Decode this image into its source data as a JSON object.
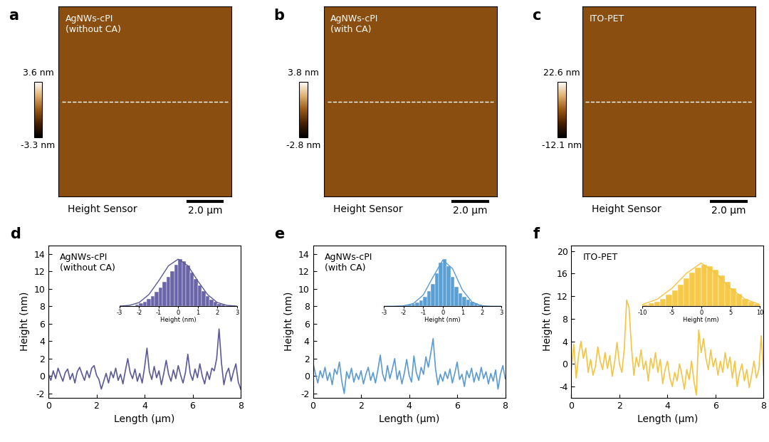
{
  "chart_data": [
    {
      "type": "image",
      "panel": "a",
      "title": "AgNWs-cPI\n(without CA)",
      "subtitle": "Height Sensor",
      "scale_bar": "2.0 μm",
      "colorbar_lim": [
        -3.3,
        3.6
      ],
      "colorbar_ticks": [
        {
          "value": 3.6,
          "label": "3.6 nm"
        },
        {
          "value": -3.3,
          "label": "-3.3 nm"
        }
      ]
    },
    {
      "type": "image",
      "panel": "b",
      "title": "AgNWs-cPI\n(with CA)",
      "subtitle": "Height Sensor",
      "scale_bar": "2.0 μm",
      "colorbar_lim": [
        -2.8,
        3.8
      ],
      "colorbar_ticks": [
        {
          "value": 3.8,
          "label": "3.8 nm"
        },
        {
          "value": -2.8,
          "label": "-2.8 nm"
        }
      ]
    },
    {
      "type": "image",
      "panel": "c",
      "title": "ITO-PET",
      "subtitle": "Height Sensor",
      "scale_bar": "2.0 μm",
      "colorbar_lim": [
        -12.1,
        22.6
      ],
      "colorbar_ticks": [
        {
          "value": 22.6,
          "label": "22.6 nm"
        },
        {
          "value": -12.1,
          "label": "-12.1 nm"
        }
      ]
    },
    {
      "type": "line",
      "panel": "d",
      "title": "AgNWs-cPI\n(without CA)",
      "x_label": "Length (μm)",
      "y_label": "Height (nm)",
      "color": "#5b5a97",
      "x": [
        0,
        0.1,
        0.2,
        0.3,
        0.4,
        0.5,
        0.6,
        0.7,
        0.8,
        0.9,
        1.0,
        1.1,
        1.2,
        1.3,
        1.4,
        1.5,
        1.6,
        1.7,
        1.8,
        1.9,
        2.0,
        2.1,
        2.2,
        2.3,
        2.4,
        2.5,
        2.6,
        2.7,
        2.8,
        2.9,
        3.0,
        3.1,
        3.2,
        3.3,
        3.4,
        3.5,
        3.6,
        3.7,
        3.8,
        3.9,
        4.0,
        4.1,
        4.2,
        4.3,
        4.4,
        4.5,
        4.6,
        4.7,
        4.8,
        4.9,
        5.0,
        5.1,
        5.2,
        5.3,
        5.4,
        5.5,
        5.6,
        5.7,
        5.8,
        5.9,
        6.0,
        6.1,
        6.2,
        6.3,
        6.4,
        6.5,
        6.6,
        6.7,
        6.8,
        6.9,
        7.0,
        7.1,
        7.2,
        7.3,
        7.4,
        7.5,
        7.6,
        7.7,
        7.8,
        7.9,
        8.0
      ],
      "values": [
        0.2,
        -0.5,
        0.6,
        -0.3,
        0.9,
        0.1,
        -0.6,
        0.4,
        0.8,
        -0.4,
        0.3,
        -0.8,
        0.5,
        1.0,
        0.2,
        -0.5,
        0.6,
        -0.2,
        0.9,
        1.2,
        0.1,
        -0.4,
        -1.5,
        -0.6,
        0.3,
        -0.8,
        0.5,
        -0.2,
        0.9,
        -0.5,
        0.2,
        -0.9,
        0.6,
        2.0,
        0.4,
        -0.3,
        0.8,
        -0.6,
        0.3,
        -0.8,
        1.0,
        3.2,
        0.5,
        -0.4,
        1.1,
        -0.2,
        0.6,
        -1.0,
        0.3,
        1.8,
        0.2,
        -0.6,
        0.7,
        -0.3,
        1.2,
        0.1,
        -0.8,
        0.4,
        2.5,
        0.3,
        -0.5,
        0.8,
        -0.2,
        1.4,
        0.0,
        -0.9,
        0.5,
        -0.4,
        0.9,
        0.6,
        2.0,
        5.4,
        1.5,
        -1.0,
        0.3,
        0.9,
        -0.6,
        0.5,
        1.4,
        -0.7,
        -1.5
      ],
      "xlim": [
        0,
        8
      ],
      "xticks": [
        0,
        2,
        4,
        6,
        8
      ],
      "ylim": [
        -2.5,
        15
      ],
      "yticks": [
        -2,
        0,
        2,
        4,
        6,
        8,
        10,
        12,
        14
      ],
      "inset": {
        "type": "histogram",
        "x_label": "Height (nm)",
        "color": "#6a64a8",
        "bins": [
          -2.2,
          -2.0,
          -1.8,
          -1.6,
          -1.4,
          -1.2,
          -1.0,
          -0.8,
          -0.6,
          -0.4,
          -0.2,
          0,
          0.2,
          0.4,
          0.6,
          0.8,
          1.0,
          1.2,
          1.4,
          1.6,
          1.8,
          2.0,
          2.2,
          2.4
        ],
        "counts": [
          4,
          6,
          10,
          15,
          22,
          30,
          40,
          52,
          63,
          75,
          88,
          100,
          95,
          86,
          72,
          58,
          45,
          33,
          22,
          14,
          9,
          5,
          3
        ],
        "fit": {
          "type": "line",
          "color": "#5b5a97",
          "x": [
            -3,
            -2.5,
            -2,
            -1.5,
            -1,
            -0.5,
            0,
            0.5,
            1,
            1.5,
            2,
            2.5,
            3
          ],
          "values": [
            0.4,
            2,
            8,
            25,
            54,
            86,
            100,
            86,
            54,
            25,
            8,
            2,
            0.4
          ]
        },
        "xlim": [
          -3,
          3
        ],
        "xticks": [
          -3,
          -2,
          -1,
          0,
          1,
          2,
          3
        ],
        "ylim": [
          0,
          110
        ],
        "tick_labels": "x"
      }
    },
    {
      "type": "line",
      "panel": "e",
      "title": "AgNWs-cPI\n(with CA)",
      "x_label": "Length (μm)",
      "y_label": "Height (nm)",
      "color": "#5b9bd0",
      "x": [
        0,
        0.1,
        0.2,
        0.3,
        0.4,
        0.5,
        0.6,
        0.7,
        0.8,
        0.9,
        1.0,
        1.1,
        1.2,
        1.3,
        1.4,
        1.5,
        1.6,
        1.7,
        1.8,
        1.9,
        2.0,
        2.1,
        2.2,
        2.3,
        2.4,
        2.5,
        2.6,
        2.7,
        2.8,
        2.9,
        3.0,
        3.1,
        3.2,
        3.3,
        3.4,
        3.5,
        3.6,
        3.7,
        3.8,
        3.9,
        4.0,
        4.1,
        4.2,
        4.3,
        4.4,
        4.5,
        4.6,
        4.7,
        4.8,
        4.9,
        5.0,
        5.1,
        5.2,
        5.3,
        5.4,
        5.5,
        5.6,
        5.7,
        5.8,
        5.9,
        6.0,
        6.1,
        6.2,
        6.3,
        6.4,
        6.5,
        6.6,
        6.7,
        6.8,
        6.9,
        7.0,
        7.1,
        7.2,
        7.3,
        7.4,
        7.5,
        7.6,
        7.7,
        7.8,
        7.9,
        8.0
      ],
      "values": [
        1.5,
        0.3,
        -0.8,
        0.6,
        -0.2,
        1.0,
        -0.5,
        0.4,
        -1.0,
        0.8,
        0.2,
        1.6,
        -0.6,
        -2.0,
        0.5,
        -0.3,
        0.9,
        -0.7,
        0.3,
        -0.4,
        0.6,
        -0.9,
        0.2,
        1.0,
        -0.5,
        0.4,
        -0.8,
        0.7,
        2.4,
        0.2,
        -0.6,
        1.2,
        -0.3,
        0.8,
        2.0,
        -0.4,
        0.6,
        -0.9,
        0.3,
        1.9,
        0.1,
        -0.7,
        2.3,
        0.4,
        -0.5,
        1.0,
        0.2,
        2.2,
        1.0,
        2.6,
        4.3,
        0.8,
        -1.0,
        0.2,
        -0.6,
        0.5,
        -0.3,
        0.8,
        -0.8,
        0.3,
        1.6,
        -0.4,
        0.2,
        -1.2,
        0.6,
        -0.2,
        0.9,
        -0.7,
        0.4,
        -0.5,
        1.0,
        -0.3,
        0.5,
        -0.9,
        0.3,
        -0.6,
        0.7,
        -1.5,
        0.2,
        1.2,
        -0.3
      ],
      "xlim": [
        0,
        8
      ],
      "xticks": [
        0,
        2,
        4,
        6,
        8
      ],
      "ylim": [
        -2.5,
        15
      ],
      "yticks": [
        -2,
        0,
        2,
        4,
        6,
        8,
        10,
        12,
        14
      ],
      "inset": {
        "type": "histogram",
        "x_label": "Height (nm)",
        "color": "#5a9fd4",
        "bins": [
          -2.2,
          -2.0,
          -1.8,
          -1.6,
          -1.4,
          -1.2,
          -1.0,
          -0.8,
          -0.6,
          -0.4,
          -0.2,
          0,
          0.2,
          0.4,
          0.6,
          0.8,
          1.0,
          1.2,
          1.4,
          1.6,
          1.8,
          2.0,
          2.2,
          2.4
        ],
        "counts": [
          1,
          2,
          3,
          5,
          8,
          12,
          20,
          32,
          48,
          70,
          92,
          100,
          85,
          62,
          42,
          28,
          20,
          14,
          9,
          6,
          4,
          2,
          1
        ],
        "fit": {
          "type": "line",
          "color": "#5b9bd0",
          "x": [
            -3,
            -2.5,
            -2,
            -1.5,
            -1,
            -0.5,
            0,
            0.5,
            1,
            1.5,
            2,
            2.5,
            3
          ],
          "values": [
            0,
            0.1,
            1,
            6,
            24,
            62,
            98,
            80,
            35,
            9,
            1,
            0.1,
            0
          ]
        },
        "xlim": [
          -3,
          3
        ],
        "xticks": [
          -3,
          -2,
          -1,
          0,
          1,
          2,
          3
        ],
        "ylim": [
          0,
          110
        ],
        "tick_labels": "x"
      }
    },
    {
      "type": "line",
      "panel": "f",
      "title": "ITO-PET",
      "x_label": "Length (μm)",
      "y_label": "Height (nm)",
      "color": "#f4c542",
      "x": [
        0,
        0.1,
        0.2,
        0.3,
        0.4,
        0.5,
        0.6,
        0.7,
        0.8,
        0.9,
        1.0,
        1.1,
        1.2,
        1.3,
        1.4,
        1.5,
        1.6,
        1.7,
        1.8,
        1.9,
        2.0,
        2.1,
        2.2,
        2.3,
        2.4,
        2.5,
        2.6,
        2.7,
        2.8,
        2.9,
        3.0,
        3.1,
        3.2,
        3.3,
        3.4,
        3.5,
        3.6,
        3.7,
        3.8,
        3.9,
        4.0,
        4.1,
        4.2,
        4.3,
        4.4,
        4.5,
        4.6,
        4.7,
        4.8,
        4.9,
        5.0,
        5.1,
        5.2,
        5.3,
        5.4,
        5.5,
        5.6,
        5.7,
        5.8,
        5.9,
        6.0,
        6.1,
        6.2,
        6.3,
        6.4,
        6.5,
        6.6,
        6.7,
        6.8,
        6.9,
        7.0,
        7.1,
        7.2,
        7.3,
        7.4,
        7.5,
        7.6,
        7.7,
        7.8,
        7.9,
        8.0
      ],
      "values": [
        -1.0,
        3.5,
        -2.5,
        1.5,
        4.0,
        1.0,
        2.8,
        -1.5,
        0.8,
        -2.0,
        -0.5,
        3.0,
        0.5,
        -1.0,
        2.0,
        -0.8,
        1.5,
        -2.2,
        0.3,
        3.8,
        0.0,
        -1.5,
        2.5,
        11.3,
        10.0,
        3.0,
        -2.0,
        1.2,
        -0.5,
        2.5,
        -1.0,
        0.5,
        -3.0,
        1.0,
        -0.8,
        2.0,
        -1.5,
        0.8,
        -3.5,
        -1.0,
        0.5,
        -2.5,
        -4.0,
        -1.5,
        -3.0,
        0.0,
        -2.0,
        -4.5,
        -1.0,
        -2.8,
        0.5,
        -3.0,
        -5.5,
        6.0,
        2.0,
        4.5,
        1.0,
        -1.0,
        2.5,
        -0.5,
        1.0,
        -2.0,
        0.5,
        -1.5,
        2.0,
        -0.8,
        1.2,
        -2.5,
        0.5,
        -4.0,
        -1.5,
        0.0,
        -3.0,
        -1.0,
        -4.2,
        -2.0,
        0.5,
        -2.5,
        -1.0,
        5.0,
        -2.0
      ],
      "xlim": [
        0,
        8
      ],
      "xticks": [
        0,
        2,
        4,
        6,
        8
      ],
      "ylim": [
        -6,
        21
      ],
      "yticks": [
        -4,
        0,
        4,
        8,
        12,
        16,
        20
      ],
      "inset": {
        "type": "histogram",
        "x_label": "Height (nm)",
        "color": "#f7c948",
        "bins": [
          -10,
          -9,
          -8,
          -7,
          -6,
          -5,
          -4,
          -3,
          -2,
          -1,
          0,
          1,
          2,
          3,
          4,
          5,
          6,
          7,
          8,
          9,
          10
        ],
        "counts": [
          3,
          6,
          10,
          16,
          24,
          34,
          46,
          60,
          72,
          82,
          88,
          85,
          78,
          66,
          52,
          38,
          26,
          16,
          9,
          5
        ],
        "fit": {
          "type": "line",
          "color": "#f4c542",
          "x": [
            -10,
            -7.5,
            -5,
            -2.5,
            0,
            2.5,
            5,
            7.5,
            10
          ],
          "values": [
            4,
            15,
            38,
            70,
            92,
            70,
            38,
            15,
            4
          ]
        },
        "xlim": [
          -10,
          10
        ],
        "xticks": [
          -10,
          -5,
          0,
          5,
          10
        ],
        "ylim": [
          0,
          110
        ],
        "tick_labels": "x"
      }
    }
  ]
}
